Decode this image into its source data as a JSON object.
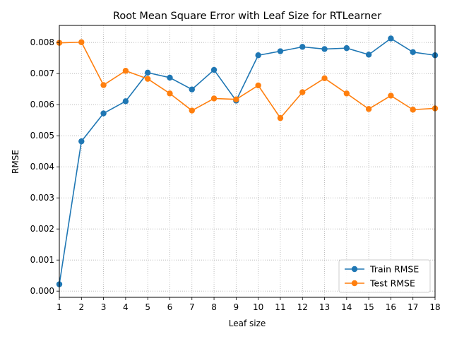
{
  "chart_data": {
    "type": "line",
    "title": "Root Mean Square Error with Leaf Size for RTLearner",
    "xlabel": "Leaf size",
    "ylabel": "RMSE",
    "x": [
      1,
      2,
      3,
      4,
      5,
      6,
      7,
      8,
      9,
      10,
      11,
      12,
      13,
      14,
      15,
      16,
      17,
      18
    ],
    "xlim": [
      1,
      18
    ],
    "ylim": [
      -0.0002,
      0.00855
    ],
    "yticks": [
      0.0,
      0.001,
      0.002,
      0.003,
      0.004,
      0.005,
      0.006,
      0.007,
      0.008
    ],
    "ytick_labels": [
      "0.000",
      "0.001",
      "0.002",
      "0.003",
      "0.004",
      "0.005",
      "0.006",
      "0.007",
      "0.008"
    ],
    "xtick_labels": [
      "1",
      "2",
      "3",
      "4",
      "5",
      "6",
      "7",
      "8",
      "9",
      "10",
      "11",
      "12",
      "13",
      "14",
      "15",
      "16",
      "17",
      "18"
    ],
    "grid": true,
    "legend_position": "lower-right",
    "series": [
      {
        "name": "Train RMSE",
        "color": "#1f77b4",
        "values": [
          0.00022,
          0.00482,
          0.00572,
          0.00611,
          0.00703,
          0.00687,
          0.00649,
          0.00712,
          0.00613,
          0.00759,
          0.00772,
          0.00786,
          0.00779,
          0.00782,
          0.00761,
          0.00813,
          0.00769,
          0.00759
        ]
      },
      {
        "name": "Test RMSE",
        "color": "#ff7f0e",
        "values": [
          0.00799,
          0.00801,
          0.00663,
          0.00709,
          0.00683,
          0.00636,
          0.00581,
          0.0062,
          0.00617,
          0.00662,
          0.00557,
          0.0064,
          0.00685,
          0.00636,
          0.00586,
          0.00629,
          0.00584,
          0.00588
        ]
      }
    ]
  }
}
